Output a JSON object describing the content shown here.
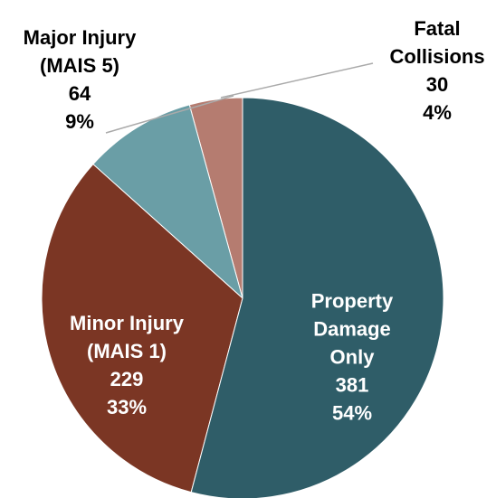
{
  "chart_data": {
    "type": "pie",
    "categories": [
      "Property Damage Only",
      "Minor Injury (MAIS 1)",
      "Major Injury (MAIS 5)",
      "Fatal Collisions"
    ],
    "values": [
      381,
      229,
      64,
      30
    ],
    "percent_labels": [
      "54%",
      "33%",
      "9%",
      "4%"
    ],
    "colors": [
      "#2f5d68",
      "#7b3624",
      "#6a9ea6",
      "#b57c70"
    ]
  }
}
